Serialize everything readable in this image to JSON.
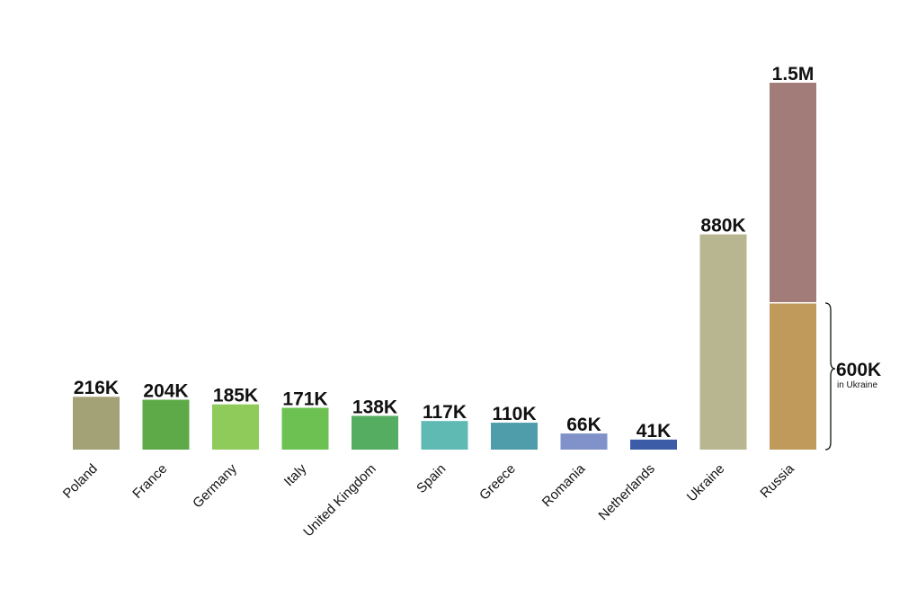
{
  "chart_data": {
    "type": "bar",
    "categories": [
      "Poland",
      "France",
      "Germany",
      "Italy",
      "United Kingdom",
      "Spain",
      "Greece",
      "Romania",
      "Netherlands",
      "Ukraine",
      "Russia"
    ],
    "values": [
      216000,
      204000,
      185000,
      171000,
      138000,
      117000,
      110000,
      66000,
      41000,
      880000,
      1500000
    ],
    "value_labels": [
      "216K",
      "204K",
      "185K",
      "171K",
      "138K",
      "117K",
      "110K",
      "66K",
      "41K",
      "880K",
      "1.5M"
    ],
    "colors": [
      "#a3a277",
      "#5eaa48",
      "#8fcb5a",
      "#6dc152",
      "#55ad62",
      "#5fbab3",
      "#4f9caa",
      "#8092c9",
      "#3d5ca8",
      "#b7b690",
      "#a27c78"
    ],
    "annotation": {
      "value": 600000,
      "label": "600K",
      "note": "in Ukraine",
      "color": "#c09a5a"
    }
  }
}
